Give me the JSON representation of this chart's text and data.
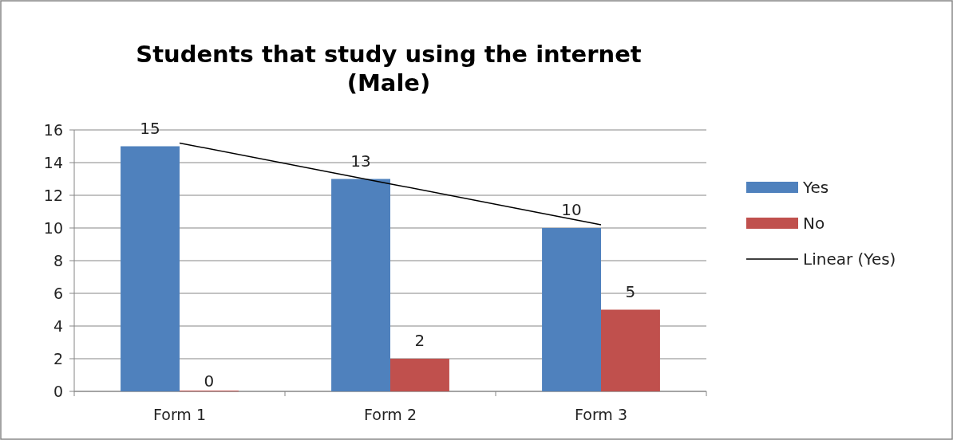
{
  "chart_data": {
    "type": "bar",
    "title": "Students that study using the internet\n(Male)",
    "categories": [
      "Form 1",
      "Form 2",
      "Form 3"
    ],
    "series": [
      {
        "name": "Yes",
        "color": "#4f81bd",
        "values": [
          15,
          13,
          10
        ],
        "value_labels": [
          "15",
          "13",
          "10"
        ]
      },
      {
        "name": "No",
        "color": "#c0504d",
        "values": [
          0,
          2,
          5
        ],
        "value_labels": [
          "0",
          "2",
          "5"
        ]
      },
      {
        "name": "Linear (Yes)",
        "type": "line",
        "color": "#000000",
        "values": [
          15.2,
          12.7,
          10.2
        ]
      }
    ],
    "ylim": [
      0,
      16
    ],
    "yticks": [
      0,
      2,
      4,
      6,
      8,
      10,
      12,
      14,
      16
    ],
    "grid": "y",
    "legend": "right"
  }
}
